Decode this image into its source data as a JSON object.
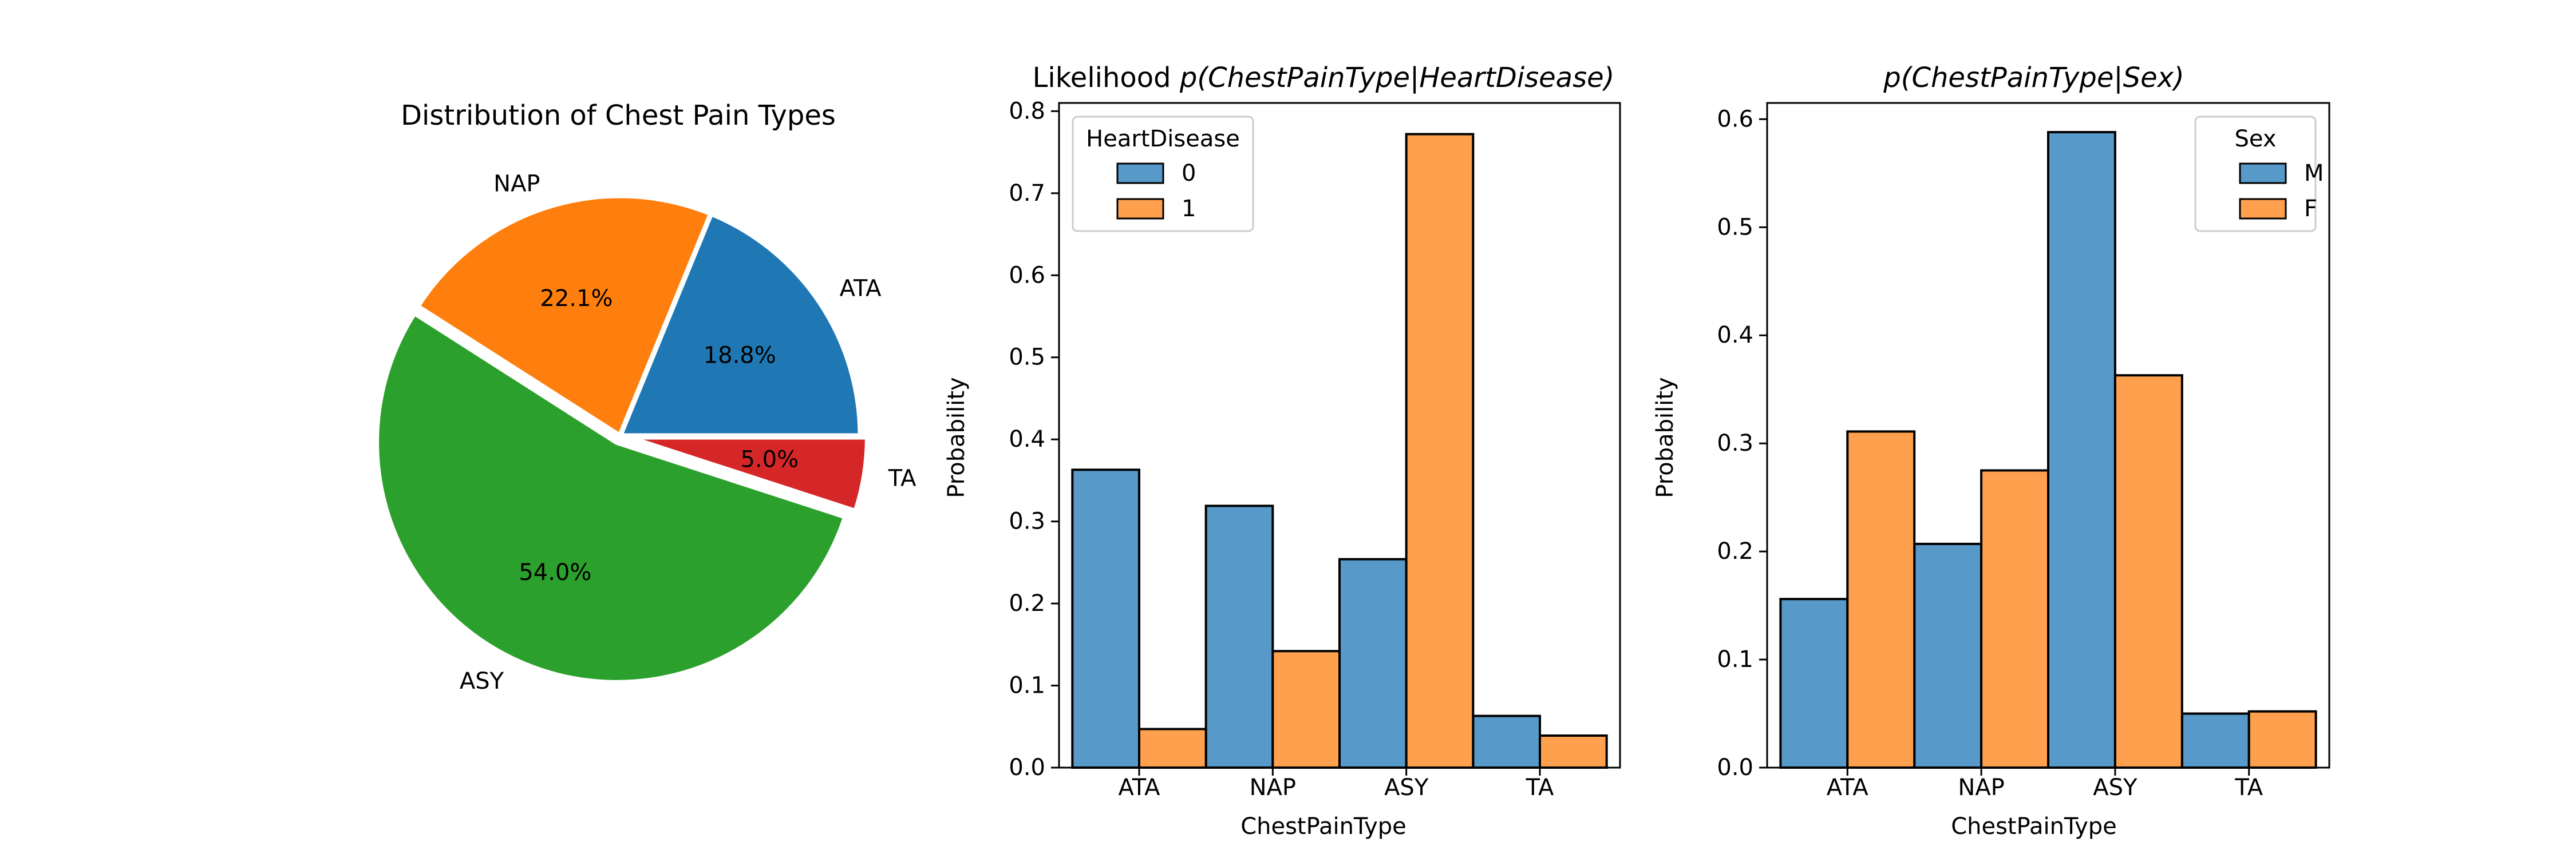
{
  "chart_data": [
    {
      "type": "pie",
      "title": "Distribution of Chest Pain Types",
      "labels": [
        "ATA",
        "NAP",
        "ASY",
        "TA"
      ],
      "values": [
        18.8,
        22.1,
        54.0,
        5.0
      ],
      "value_labels": [
        "18.8%",
        "22.1%",
        "54.0%",
        "5.0%"
      ],
      "colors": [
        "#1f77b4",
        "#ff7f0e",
        "#2ca02c",
        "#d62728"
      ],
      "explode": [
        0,
        0,
        0.03,
        0.03
      ]
    },
    {
      "type": "bar",
      "title_prefix": "Likelihood ",
      "title_math": "p(ChestPainType|HeartDisease)",
      "categories": [
        "ATA",
        "NAP",
        "ASY",
        "TA"
      ],
      "xlabel": "ChestPainType",
      "ylabel": "Probability",
      "ylim": [
        0,
        0.81
      ],
      "yticks": [
        0.0,
        0.1,
        0.2,
        0.3,
        0.4,
        0.5,
        0.6,
        0.7,
        0.8
      ],
      "legend_title": "HeartDisease",
      "legend_position": "top-left",
      "series": [
        {
          "name": "0",
          "color": "#5799c8",
          "values": [
            0.363,
            0.319,
            0.254,
            0.063
          ]
        },
        {
          "name": "1",
          "color": "#ffa04f",
          "values": [
            0.047,
            0.142,
            0.772,
            0.039
          ]
        }
      ]
    },
    {
      "type": "bar",
      "title_prefix": "",
      "title_math": "p(ChestPainType|Sex)",
      "categories": [
        "ATA",
        "NAP",
        "ASY",
        "TA"
      ],
      "xlabel": "ChestPainType",
      "ylabel": "Probability",
      "ylim": [
        0,
        0.615
      ],
      "yticks": [
        0.0,
        0.1,
        0.2,
        0.3,
        0.4,
        0.5,
        0.6
      ],
      "legend_title": "Sex",
      "legend_position": "top-right",
      "series": [
        {
          "name": "M",
          "color": "#5799c8",
          "values": [
            0.156,
            0.207,
            0.588,
            0.05
          ]
        },
        {
          "name": "F",
          "color": "#ffa04f",
          "values": [
            0.311,
            0.275,
            0.363,
            0.052
          ]
        }
      ]
    }
  ]
}
